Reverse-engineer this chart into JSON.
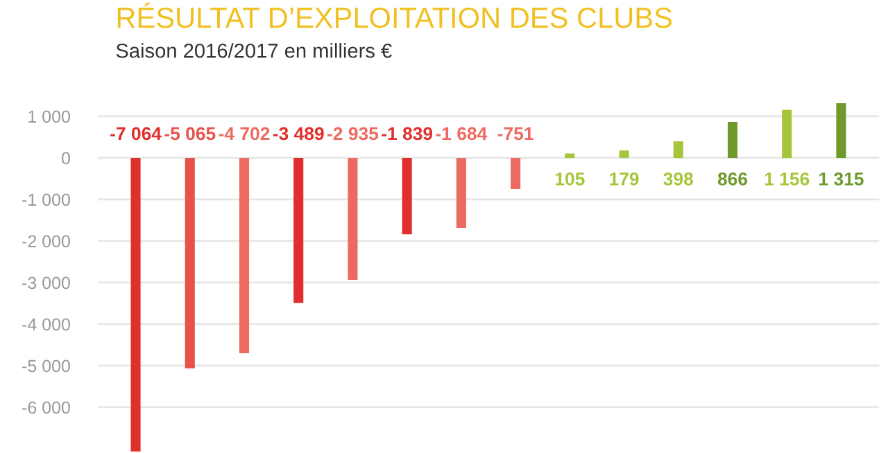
{
  "chart_data": {
    "type": "bar",
    "title": "RÉSULTAT D’EXPLOITATION DES CLUBS",
    "subtitle": "Saison 2016/2017 en milliers €",
    "categories": [
      null,
      null,
      null,
      null,
      null,
      null,
      null,
      null,
      null,
      null,
      null,
      null,
      null,
      null
    ],
    "values": [
      -7064,
      -5065,
      -4702,
      -3489,
      -2935,
      -1839,
      -1684,
      -751,
      105,
      179,
      398,
      866,
      1156,
      1315
    ],
    "colors": [
      "#e02f2c",
      "#e8524c",
      "#ec6a62",
      "#e02f2c",
      "#ec6a62",
      "#e02f2c",
      "#ec6a62",
      "#ec6a62",
      "#a6c63a",
      "#a6c63a",
      "#a6c63a",
      "#6f9a2b",
      "#a6c63a",
      "#6f9a2b"
    ],
    "value_labels": [
      "-7 064",
      "-5 065",
      "-4 702",
      "-3 489",
      "-2 935",
      "-1 839",
      "-1 684",
      "-751",
      "105",
      "179",
      "398",
      "866",
      "1 156",
      "1 315"
    ],
    "ylim": [
      -7100,
      1400
    ],
    "yticks": [
      {
        "value": 1000,
        "label": "1 000"
      },
      0,
      {
        "value": -1000,
        "label": "-1 000"
      },
      {
        "value": -2000,
        "label": "-2 000"
      },
      {
        "value": -3000,
        "label": "-3 000"
      },
      {
        "value": -4000,
        "label": "-4 000"
      },
      {
        "value": -5000,
        "label": "-5 000"
      },
      {
        "value": -6000,
        "label": "-6 000"
      }
    ],
    "grid": "y",
    "legend": false
  }
}
